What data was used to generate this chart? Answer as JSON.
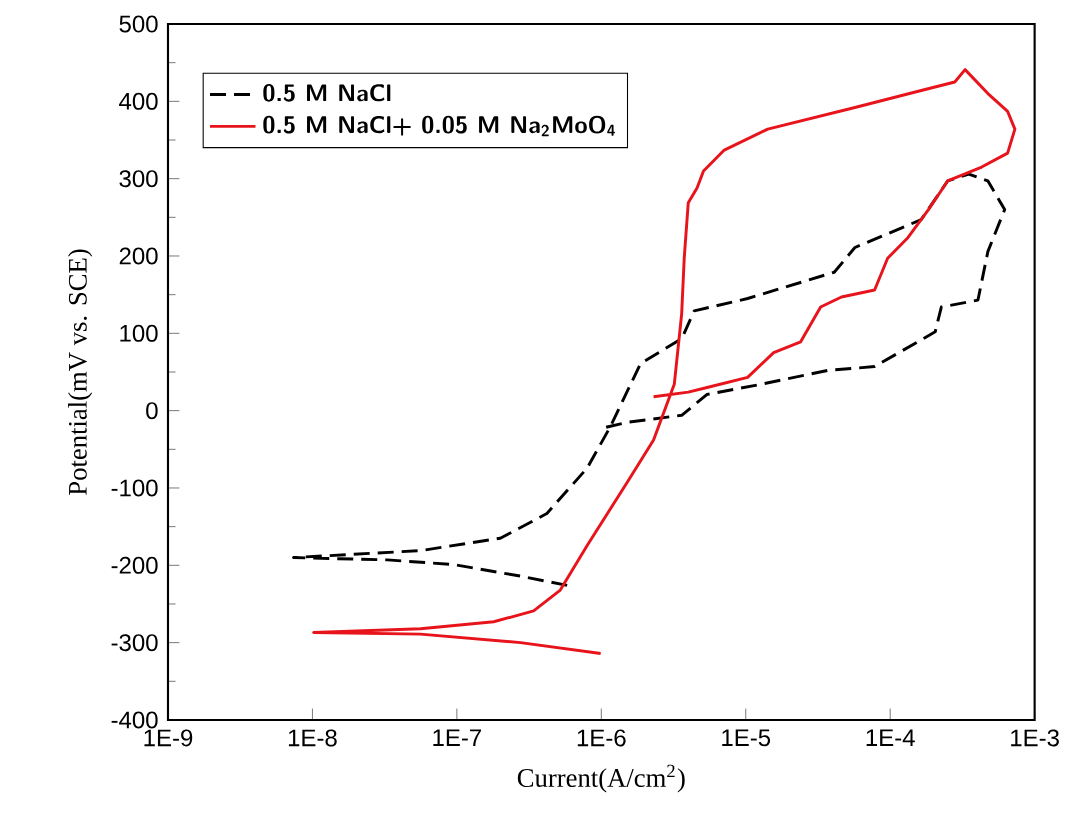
{
  "chart_data": {
    "type": "line",
    "xlabel": "Current(A/cm$^{2}$)",
    "ylabel": "Potential(mV vs. SCE)",
    "log": "x",
    "xlim": [
      1e-09,
      0.001
    ],
    "ylim": [
      -400,
      500
    ],
    "xticks": [
      {
        "value": 1e-09,
        "label": "1E-9"
      },
      {
        "value": 1e-08,
        "label": "1E-8"
      },
      {
        "value": 1e-07,
        "label": "1E-7"
      },
      {
        "value": 1e-06,
        "label": "1E-6"
      },
      {
        "value": 1e-05,
        "label": "1E-5"
      },
      {
        "value": 0.0001,
        "label": "1E-4"
      },
      {
        "value": 0.001,
        "label": "1E-3"
      }
    ],
    "yticks": [
      -400,
      -300,
      -200,
      -100,
      0,
      100,
      200,
      300,
      400,
      500
    ],
    "legend": "top left",
    "marker": "none",
    "grid": false,
    "series": [
      {
        "name": "0.5 M NaCl",
        "color": "#000000",
        "line_style": "dashed",
        "x": [
          5.8e-07,
          2.76e-07,
          9.5e-08,
          3.3e-08,
          7.4e-09,
          5.6e-08,
          2e-07,
          4.2e-07,
          8e-07,
          1.16e-06,
          1.87e-06,
          3.6e-06,
          4.4e-06,
          1.03e-05,
          4.1e-05,
          5.7e-05,
          0.000164,
          0.00025,
          0.00035,
          0.000475,
          0.00062,
          0.000475,
          0.000405,
          0.000226,
          0.000205,
          7.8e-05,
          3.7e-05,
          1.27e-05,
          5.4e-06,
          3.6e-06,
          1.52e-06,
          1.05e-06
        ],
        "values": [
          -226,
          -214,
          -199,
          -193,
          -190,
          -181,
          -165,
          -133,
          -74,
          -20,
          61,
          93,
          129,
          145,
          179,
          211,
          247,
          297,
          306,
          297,
          260,
          206,
          143,
          134,
          102,
          57,
          52,
          34,
          21,
          -6,
          -15,
          -22
        ]
      },
      {
        "name": "0.5 M NaCl+ 0.05 M Na$_{2}$MoO$_{4}$",
        "color": "#e8141c",
        "line_style": "solid",
        "x": [
          9.9e-07,
          2.76e-07,
          5.6e-08,
          1.02e-08,
          5.6e-08,
          1.8e-07,
          3.4e-07,
          5.2e-07,
          8e-07,
          1.52e-06,
          2.3e-06,
          3.2e-06,
          3.6e-06,
          3.75e-06,
          4e-06,
          4.6e-06,
          5.1e-06,
          7.1e-06,
          1.42e-05,
          5.7e-05,
          0.000164,
          0.00028,
          0.00033,
          0.000475,
          0.00065,
          0.00073,
          0.00065,
          0.00043,
          0.00025,
          0.000184,
          0.000133,
          9.6e-05,
          7.8e-05,
          4.6e-05,
          3.3e-05,
          2.4e-05,
          1.56e-05,
          1.03e-05,
          5.4e-06,
          4e-06,
          2.3e-06
        ],
        "values": [
          -314,
          -300,
          -289,
          -287,
          -282,
          -273,
          -259,
          -232,
          -174,
          -92,
          -38,
          34,
          125,
          197,
          269,
          288,
          310,
          337,
          364,
          392,
          414,
          425,
          441,
          410,
          387,
          364,
          333,
          315,
          297,
          260,
          224,
          197,
          156,
          147,
          134,
          89,
          75,
          43,
          30,
          24,
          18
        ]
      }
    ]
  }
}
